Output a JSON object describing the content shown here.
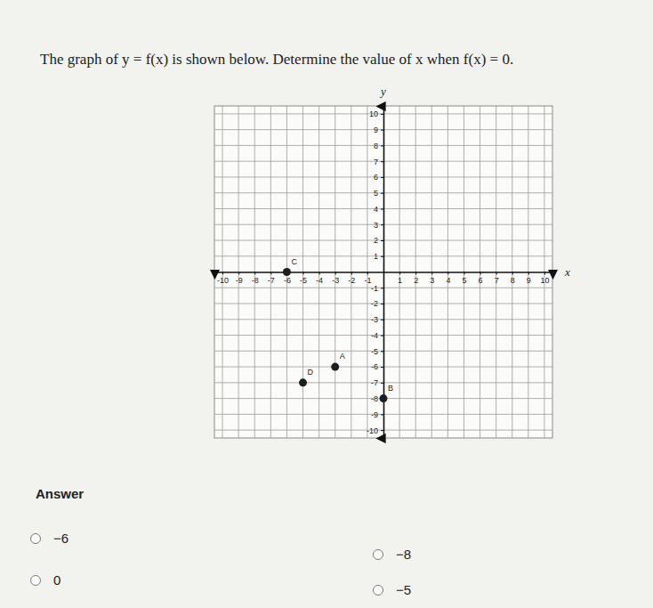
{
  "question": "The graph of y = f(x) is shown below. Determine the value of x when f(x) = 0.",
  "chart_data": {
    "type": "scatter",
    "x_label": "x",
    "y_label": "y",
    "x": [
      -3,
      0,
      -6,
      -5
    ],
    "values": [
      -6,
      -8,
      0,
      -7
    ],
    "labels": [
      "A",
      "B",
      "C",
      "D"
    ],
    "color": "#1e1e1e",
    "xlim": [
      -10.5,
      10.5
    ],
    "ylim": [
      -10.5,
      10.5
    ],
    "xticks": [
      -10,
      -9,
      -8,
      -7,
      -6,
      -5,
      -4,
      -3,
      -2,
      -1,
      1,
      2,
      3,
      4,
      5,
      6,
      7,
      8,
      9,
      10
    ],
    "yticks": [
      -10,
      -9,
      -8,
      -7,
      -6,
      -5,
      -4,
      -3,
      -2,
      -1,
      1,
      2,
      3,
      4,
      5,
      6,
      7,
      8,
      9,
      10
    ],
    "grid": true
  },
  "answer_heading": "Answer",
  "options": [
    "−6",
    "−8",
    "0",
    "−5"
  ]
}
